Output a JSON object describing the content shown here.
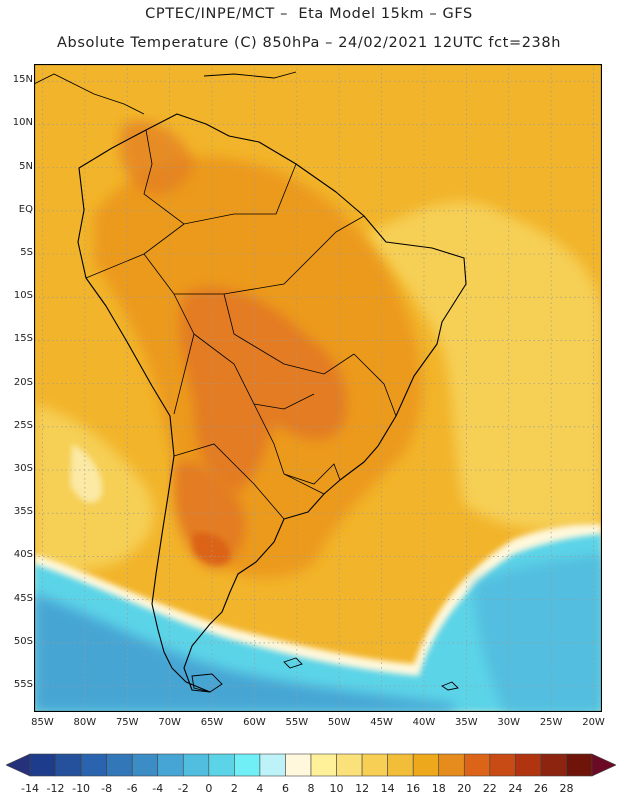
{
  "title_line1": "CPTEC/INPE/MCT –  Eta Model 15km – GFS",
  "title_line2": "Absolute Temperature (C) 850hPa – 24/02/2021 12UTC fct=238h",
  "map": {
    "region": "South America",
    "lon_range": [
      -86,
      -19
    ],
    "lat_range": [
      -58,
      17
    ],
    "lat_ticks": [
      {
        "value": 15,
        "label": "15N"
      },
      {
        "value": 10,
        "label": "10N"
      },
      {
        "value": 5,
        "label": "5N"
      },
      {
        "value": 0,
        "label": "EQ"
      },
      {
        "value": -5,
        "label": "5S"
      },
      {
        "value": -10,
        "label": "10S"
      },
      {
        "value": -15,
        "label": "15S"
      },
      {
        "value": -20,
        "label": "20S"
      },
      {
        "value": -25,
        "label": "25S"
      },
      {
        "value": -30,
        "label": "30S"
      },
      {
        "value": -35,
        "label": "35S"
      },
      {
        "value": -40,
        "label": "40S"
      },
      {
        "value": -45,
        "label": "45S"
      },
      {
        "value": -50,
        "label": "50S"
      },
      {
        "value": -55,
        "label": "55S"
      }
    ],
    "lon_ticks": [
      {
        "value": -85,
        "label": "85W"
      },
      {
        "value": -80,
        "label": "80W"
      },
      {
        "value": -75,
        "label": "75W"
      },
      {
        "value": -70,
        "label": "70W"
      },
      {
        "value": -65,
        "label": "65W"
      },
      {
        "value": -60,
        "label": "60W"
      },
      {
        "value": -55,
        "label": "55W"
      },
      {
        "value": -50,
        "label": "50W"
      },
      {
        "value": -45,
        "label": "45W"
      },
      {
        "value": -40,
        "label": "40W"
      },
      {
        "value": -35,
        "label": "35W"
      },
      {
        "value": -30,
        "label": "30W"
      },
      {
        "value": -25,
        "label": "25W"
      },
      {
        "value": -20,
        "label": "20W"
      }
    ],
    "grid": "dotted"
  },
  "colorbar": {
    "labels": [
      "-14",
      "-12",
      "-10",
      "-8",
      "-6",
      "-4",
      "-2",
      "0",
      "2",
      "4",
      "6",
      "8",
      "10",
      "12",
      "14",
      "16",
      "18",
      "20",
      "22",
      "24",
      "26",
      "28"
    ],
    "colors": [
      "#1e3c8c",
      "#24509c",
      "#2a64ae",
      "#3278b8",
      "#3c8cc6",
      "#46a5d4",
      "#52bedf",
      "#5cd4e8",
      "#70f0f6",
      "#bdf2f8",
      "#fff8dc",
      "#fff09a",
      "#fbe17a",
      "#f6cf54",
      "#f2be3a",
      "#eda81c",
      "#e58c1c",
      "#dc6418",
      "#c84a14",
      "#b03410",
      "#8c2410",
      "#6e1408"
    ],
    "min_color": "#26317c",
    "max_color": "#6a0a24"
  },
  "colors": {
    "warm_core": "#e37c24",
    "warm_land": "#ec9a1e",
    "ocean_warm": "#f2b42a",
    "ocean_mild": "#f6d254",
    "cold_band": "#5cd4e8",
    "cold_deep": "#46a5d4",
    "coastline": "#000000"
  }
}
